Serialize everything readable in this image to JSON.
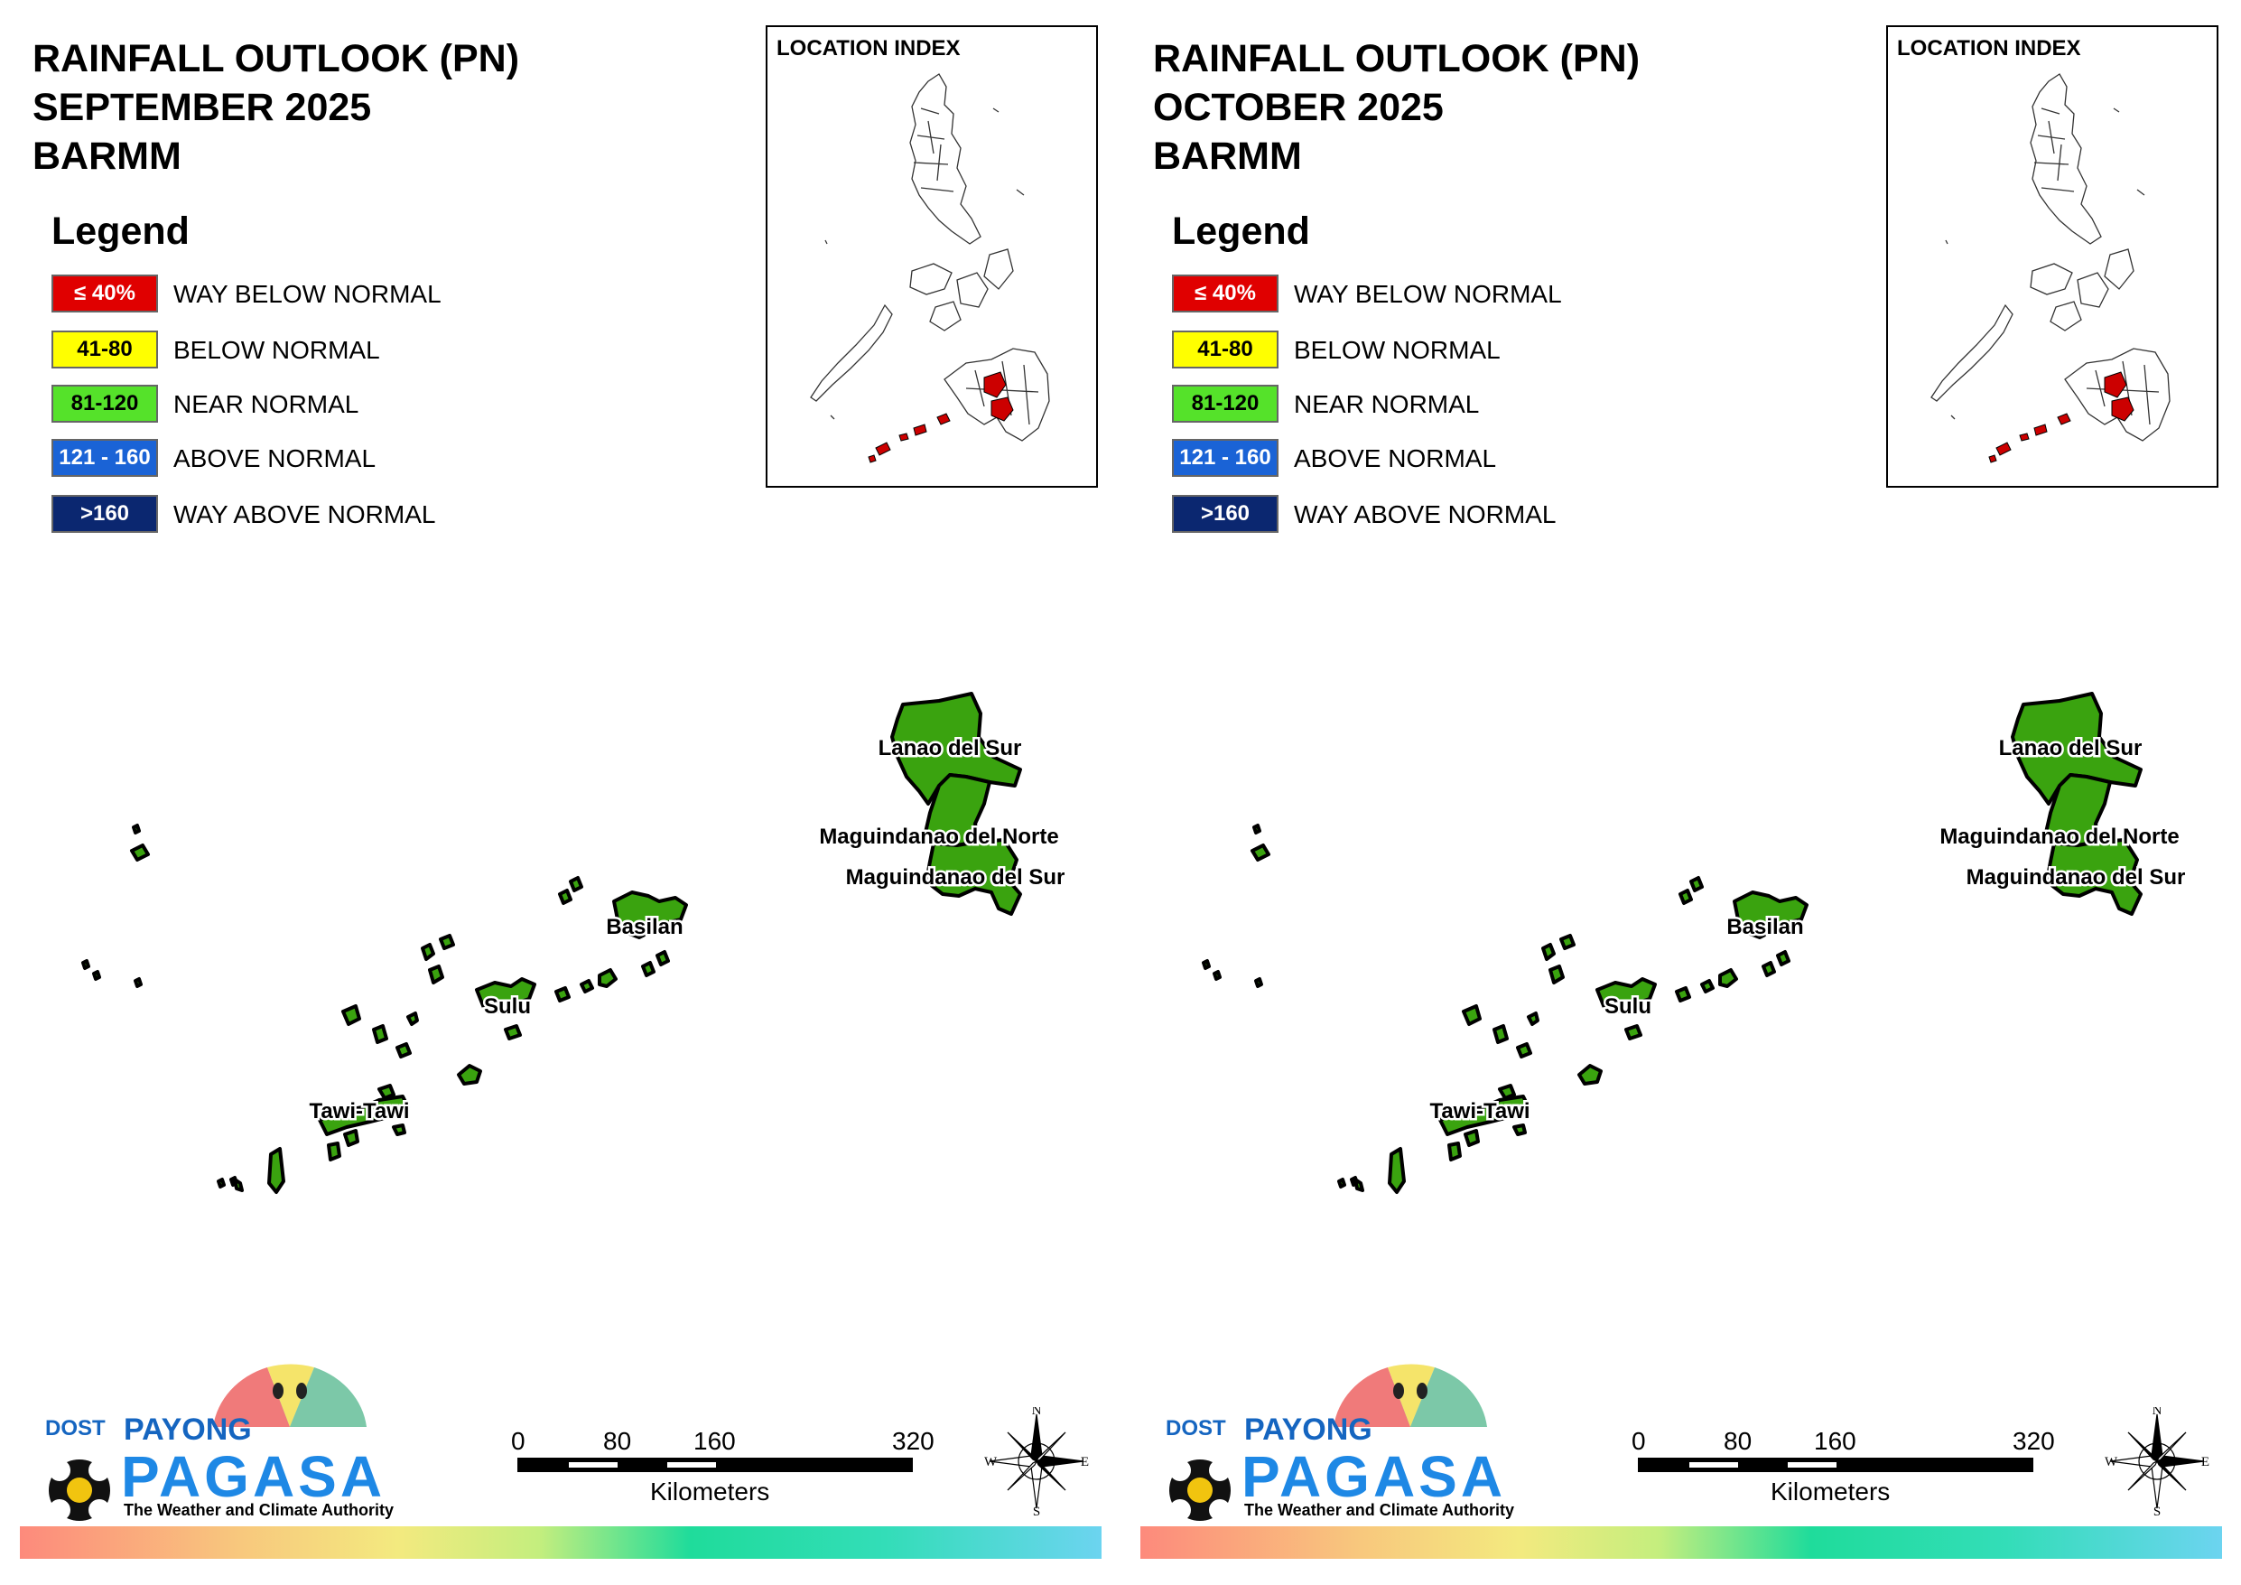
{
  "legend": {
    "title": "Legend",
    "items": [
      {
        "range": "≤ 40%",
        "label": "WAY BELOW NORMAL",
        "color": "#e00000",
        "text_color": "#ffffff"
      },
      {
        "range": "41-80",
        "label": "BELOW NORMAL",
        "color": "#ffff00",
        "text_color": "#000000"
      },
      {
        "range": "81-120",
        "label": "NEAR NORMAL",
        "color": "#55e22a",
        "text_color": "#000000"
      },
      {
        "range": "121 - 160",
        "label": "ABOVE NORMAL",
        "color": "#1a63d6",
        "text_color": "#ffffff"
      },
      {
        "range": ">160",
        "label": "WAY ABOVE NORMAL",
        "color": "#0b2770",
        "text_color": "#ffffff"
      }
    ]
  },
  "inset_title": "LOCATION INDEX",
  "panels": [
    {
      "title_lines": [
        "RAINFALL OUTLOOK (PN)",
        "SEPTEMBER 2025",
        "BARMM"
      ],
      "provinces": [
        {
          "name": "Lanao del Sur",
          "category": "NEAR NORMAL",
          "color": "#3aa30f"
        },
        {
          "name": "Maguindanao del Norte",
          "category": "NEAR NORMAL",
          "color": "#3aa30f"
        },
        {
          "name": "Maguindanao del Sur",
          "category": "NEAR NORMAL",
          "color": "#3aa30f"
        },
        {
          "name": "Basilan",
          "category": "NEAR NORMAL",
          "color": "#3aa30f"
        },
        {
          "name": "Sulu",
          "category": "NEAR NORMAL",
          "color": "#3aa30f"
        },
        {
          "name": "Tawi-Tawi",
          "category": "NEAR NORMAL",
          "color": "#3aa30f"
        }
      ]
    },
    {
      "title_lines": [
        "RAINFALL OUTLOOK (PN)",
        "OCTOBER 2025",
        "BARMM"
      ],
      "provinces": [
        {
          "name": "Lanao del Sur",
          "category": "NEAR NORMAL",
          "color": "#3aa30f"
        },
        {
          "name": "Maguindanao del Norte",
          "category": "NEAR NORMAL",
          "color": "#3aa30f"
        },
        {
          "name": "Maguindanao del Sur",
          "category": "NEAR NORMAL",
          "color": "#3aa30f"
        },
        {
          "name": "Basilan",
          "category": "NEAR NORMAL",
          "color": "#3aa30f"
        },
        {
          "name": "Sulu",
          "category": "NEAR NORMAL",
          "color": "#3aa30f"
        },
        {
          "name": "Tawi-Tawi",
          "category": "NEAR NORMAL",
          "color": "#3aa30f"
        }
      ]
    }
  ],
  "inset_highlight_color": "#cc0000",
  "scale": {
    "labels": [
      "0",
      "80",
      "160",
      "320"
    ],
    "unit": "Kilometers"
  },
  "compass": {
    "n": "N",
    "e": "E",
    "s": "S",
    "w": "W"
  },
  "logo": {
    "dost": "DOST",
    "payong": "PAYONG",
    "pagasa": "PAGASA",
    "tagline": "The Weather and Climate Authority"
  }
}
